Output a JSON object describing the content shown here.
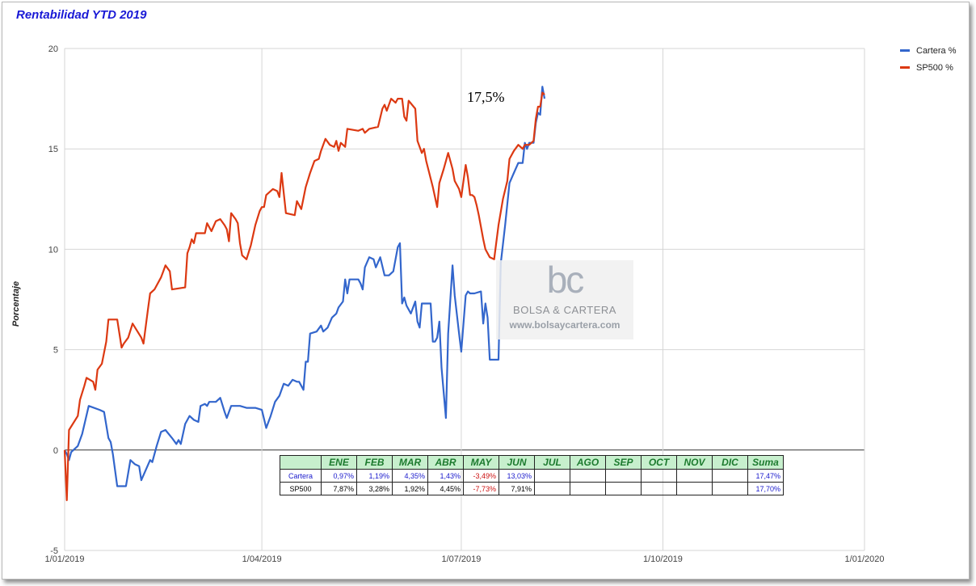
{
  "chart_data": {
    "type": "line",
    "title": "Rentabilidad YTD 2019",
    "ylabel": "Porcentaje",
    "xlabel": "",
    "ylim": [
      -5,
      20
    ],
    "yticks": [
      "-5",
      "0",
      "5",
      "10",
      "15",
      "20"
    ],
    "xlim": [
      "2019-01-01",
      "2020-01-01"
    ],
    "xticks": [
      "1/01/2019",
      "1/04/2019",
      "1/07/2019",
      "1/10/2019",
      "1/01/2020"
    ],
    "grid": true,
    "legend_position": "right",
    "annotation": "17,5%",
    "series": [
      {
        "name": "Cartera %",
        "color": "#3366cc",
        "points": [
          [
            "2019-01-01",
            0
          ],
          [
            "2019-01-02",
            -0.2
          ],
          [
            "2019-01-03",
            -0.5
          ],
          [
            "2019-01-04",
            -0.1
          ],
          [
            "2019-01-07",
            0.2
          ],
          [
            "2019-01-09",
            0.8
          ],
          [
            "2019-01-12",
            2.2
          ],
          [
            "2019-01-17",
            2.0
          ],
          [
            "2019-01-19",
            1.9
          ],
          [
            "2019-01-21",
            0.6
          ],
          [
            "2019-01-22",
            0.4
          ],
          [
            "2019-01-23",
            -0.2
          ],
          [
            "2019-01-25",
            -1.8
          ],
          [
            "2019-01-29",
            -1.8
          ],
          [
            "2019-01-31",
            -0.5
          ],
          [
            "2019-02-02",
            -0.7
          ],
          [
            "2019-02-04",
            -0.8
          ],
          [
            "2019-02-05",
            -1.5
          ],
          [
            "2019-02-09",
            -0.5
          ],
          [
            "2019-02-10",
            -0.6
          ],
          [
            "2019-02-12",
            0.2
          ],
          [
            "2019-02-14",
            0.9
          ],
          [
            "2019-02-16",
            1.0
          ],
          [
            "2019-02-19",
            0.6
          ],
          [
            "2019-02-21",
            0.3
          ],
          [
            "2019-02-22",
            0.5
          ],
          [
            "2019-02-23",
            0.3
          ],
          [
            "2019-02-25",
            1.3
          ],
          [
            "2019-02-27",
            1.7
          ],
          [
            "2019-03-01",
            1.5
          ],
          [
            "2019-03-03",
            1.4
          ],
          [
            "2019-03-04",
            2.2
          ],
          [
            "2019-03-06",
            2.3
          ],
          [
            "2019-03-07",
            2.2
          ],
          [
            "2019-03-08",
            2.4
          ],
          [
            "2019-03-11",
            2.4
          ],
          [
            "2019-03-13",
            2.6
          ],
          [
            "2019-03-15",
            1.9
          ],
          [
            "2019-03-16",
            1.6
          ],
          [
            "2019-03-18",
            2.2
          ],
          [
            "2019-03-22",
            2.2
          ],
          [
            "2019-03-25",
            2.1
          ],
          [
            "2019-03-27",
            2.1
          ],
          [
            "2019-03-29",
            2.1
          ],
          [
            "2019-04-01",
            2.0
          ],
          [
            "2019-04-03",
            1.1
          ],
          [
            "2019-04-05",
            1.7
          ],
          [
            "2019-04-07",
            2.4
          ],
          [
            "2019-04-09",
            2.7
          ],
          [
            "2019-04-11",
            3.3
          ],
          [
            "2019-04-13",
            3.2
          ],
          [
            "2019-04-15",
            3.5
          ],
          [
            "2019-04-17",
            3.4
          ],
          [
            "2019-04-18",
            3.4
          ],
          [
            "2019-04-20",
            3.0
          ],
          [
            "2019-04-21",
            4.4
          ],
          [
            "2019-04-22",
            4.4
          ],
          [
            "2019-04-23",
            5.8
          ],
          [
            "2019-04-26",
            5.9
          ],
          [
            "2019-04-28",
            6.2
          ],
          [
            "2019-04-29",
            5.9
          ],
          [
            "2019-05-01",
            6.1
          ],
          [
            "2019-05-03",
            6.6
          ],
          [
            "2019-05-05",
            6.8
          ],
          [
            "2019-05-06",
            7.1
          ],
          [
            "2019-05-08",
            7.4
          ],
          [
            "2019-05-09",
            8.5
          ],
          [
            "2019-05-10",
            7.8
          ],
          [
            "2019-05-11",
            8.5
          ],
          [
            "2019-05-15",
            8.5
          ],
          [
            "2019-05-16",
            8.3
          ],
          [
            "2019-05-17",
            8.0
          ],
          [
            "2019-05-18",
            9.1
          ],
          [
            "2019-05-20",
            9.6
          ],
          [
            "2019-05-22",
            9.5
          ],
          [
            "2019-05-23",
            9.1
          ],
          [
            "2019-05-25",
            9.6
          ],
          [
            "2019-05-27",
            8.7
          ],
          [
            "2019-05-29",
            8.7
          ],
          [
            "2019-05-31",
            8.9
          ],
          [
            "2019-06-02",
            10.1
          ],
          [
            "2019-06-03",
            10.3
          ],
          [
            "2019-06-04",
            7.3
          ],
          [
            "2019-06-05",
            7.6
          ],
          [
            "2019-06-06",
            7.2
          ],
          [
            "2019-06-08",
            6.8
          ],
          [
            "2019-06-10",
            7.4
          ],
          [
            "2019-06-11",
            6.4
          ],
          [
            "2019-06-12",
            6.1
          ],
          [
            "2019-06-13",
            7.3
          ],
          [
            "2019-06-17",
            7.3
          ],
          [
            "2019-06-18",
            5.4
          ],
          [
            "2019-06-19",
            5.4
          ],
          [
            "2019-06-20",
            5.6
          ],
          [
            "2019-06-21",
            6.4
          ],
          [
            "2019-06-22",
            4.1
          ],
          [
            "2019-06-24",
            1.6
          ],
          [
            "2019-06-25",
            5.8
          ],
          [
            "2019-06-27",
            9.2
          ],
          [
            "2019-06-28",
            7.7
          ],
          [
            "2019-06-30",
            5.8
          ],
          [
            "2019-07-01",
            4.9
          ],
          [
            "2019-07-03",
            7.7
          ],
          [
            "2019-07-04",
            7.9
          ],
          [
            "2019-07-05",
            7.8
          ],
          [
            "2019-07-07",
            7.8
          ],
          [
            "2019-07-10",
            7.9
          ],
          [
            "2019-07-11",
            6.3
          ],
          [
            "2019-07-12",
            7.3
          ],
          [
            "2019-07-13",
            6.6
          ],
          [
            "2019-07-14",
            4.5
          ],
          [
            "2019-07-18",
            4.5
          ],
          [
            "2019-07-19",
            9.3
          ],
          [
            "2019-07-21",
            11.2
          ],
          [
            "2019-07-23",
            13.3
          ],
          [
            "2019-07-25",
            13.8
          ],
          [
            "2019-07-27",
            14.3
          ],
          [
            "2019-07-29",
            14.3
          ],
          [
            "2019-07-30",
            15.3
          ],
          [
            "2019-07-31",
            15.0
          ],
          [
            "2019-08-01",
            15.3
          ],
          [
            "2019-08-03",
            15.3
          ],
          [
            "2019-08-04",
            16.3
          ],
          [
            "2019-08-05",
            16.8
          ],
          [
            "2019-08-06",
            16.7
          ],
          [
            "2019-08-07",
            18.1
          ],
          [
            "2019-08-08",
            17.5
          ]
        ]
      },
      {
        "name": "SP500 %",
        "color": "#dc3912",
        "points": [
          [
            "2019-01-01",
            0
          ],
          [
            "2019-01-02",
            -2.5
          ],
          [
            "2019-01-03",
            1.0
          ],
          [
            "2019-01-07",
            1.7
          ],
          [
            "2019-01-08",
            2.5
          ],
          [
            "2019-01-10",
            3.2
          ],
          [
            "2019-01-11",
            3.6
          ],
          [
            "2019-01-14",
            3.4
          ],
          [
            "2019-01-15",
            3.0
          ],
          [
            "2019-01-16",
            4.0
          ],
          [
            "2019-01-18",
            4.3
          ],
          [
            "2019-01-20",
            5.4
          ],
          [
            "2019-01-21",
            6.5
          ],
          [
            "2019-01-25",
            6.5
          ],
          [
            "2019-01-27",
            5.1
          ],
          [
            "2019-01-28",
            5.3
          ],
          [
            "2019-01-30",
            5.6
          ],
          [
            "2019-02-01",
            6.3
          ],
          [
            "2019-02-05",
            5.6
          ],
          [
            "2019-02-06",
            5.3
          ],
          [
            "2019-02-08",
            7.0
          ],
          [
            "2019-02-09",
            7.8
          ],
          [
            "2019-02-11",
            8.0
          ],
          [
            "2019-02-14",
            8.6
          ],
          [
            "2019-02-15",
            8.9
          ],
          [
            "2019-02-16",
            9.2
          ],
          [
            "2019-02-18",
            8.9
          ],
          [
            "2019-02-19",
            8.0
          ],
          [
            "2019-02-25",
            8.1
          ],
          [
            "2019-02-26",
            9.8
          ],
          [
            "2019-02-27",
            10.1
          ],
          [
            "2019-02-28",
            10.5
          ],
          [
            "2019-03-01",
            10.3
          ],
          [
            "2019-03-02",
            10.8
          ],
          [
            "2019-03-06",
            10.8
          ],
          [
            "2019-03-07",
            11.3
          ],
          [
            "2019-03-09",
            10.9
          ],
          [
            "2019-03-11",
            11.4
          ],
          [
            "2019-03-13",
            11.5
          ],
          [
            "2019-03-15",
            11.2
          ],
          [
            "2019-03-16",
            11.0
          ],
          [
            "2019-03-17",
            10.4
          ],
          [
            "2019-03-18",
            11.8
          ],
          [
            "2019-03-20",
            11.5
          ],
          [
            "2019-03-21",
            11.3
          ],
          [
            "2019-03-22",
            10.3
          ],
          [
            "2019-03-23",
            9.7
          ],
          [
            "2019-03-25",
            9.5
          ],
          [
            "2019-03-27",
            10.2
          ],
          [
            "2019-03-29",
            11.2
          ],
          [
            "2019-03-31",
            11.9
          ],
          [
            "2019-04-01",
            12.1
          ],
          [
            "2019-04-02",
            12.1
          ],
          [
            "2019-04-03",
            12.7
          ],
          [
            "2019-04-06",
            13.0
          ],
          [
            "2019-04-08",
            12.9
          ],
          [
            "2019-04-09",
            12.6
          ],
          [
            "2019-04-10",
            13.8
          ],
          [
            "2019-04-12",
            11.8
          ],
          [
            "2019-04-16",
            11.7
          ],
          [
            "2019-04-17",
            12.4
          ],
          [
            "2019-04-19",
            12.0
          ],
          [
            "2019-04-21",
            13.1
          ],
          [
            "2019-04-23",
            13.8
          ],
          [
            "2019-04-25",
            14.4
          ],
          [
            "2019-04-27",
            14.5
          ],
          [
            "2019-04-28",
            14.9
          ],
          [
            "2019-04-30",
            15.5
          ],
          [
            "2019-05-02",
            15.2
          ],
          [
            "2019-05-04",
            15.1
          ],
          [
            "2019-05-05",
            15.4
          ],
          [
            "2019-05-06",
            14.9
          ],
          [
            "2019-05-07",
            15.3
          ],
          [
            "2019-05-09",
            15.1
          ],
          [
            "2019-05-10",
            16.0
          ],
          [
            "2019-05-15",
            15.9
          ],
          [
            "2019-05-17",
            16.0
          ],
          [
            "2019-05-18",
            15.8
          ],
          [
            "2019-05-20",
            16.0
          ],
          [
            "2019-05-24",
            16.1
          ],
          [
            "2019-05-26",
            17.0
          ],
          [
            "2019-05-27",
            17.2
          ],
          [
            "2019-05-28",
            16.9
          ],
          [
            "2019-05-30",
            17.5
          ],
          [
            "2019-06-01",
            17.3
          ],
          [
            "2019-06-02",
            17.5
          ],
          [
            "2019-06-04",
            17.5
          ],
          [
            "2019-06-05",
            16.6
          ],
          [
            "2019-06-06",
            16.4
          ],
          [
            "2019-06-07",
            17.4
          ],
          [
            "2019-06-10",
            17.0
          ],
          [
            "2019-06-11",
            15.4
          ],
          [
            "2019-06-12",
            15.1
          ],
          [
            "2019-06-13",
            14.8
          ],
          [
            "2019-06-14",
            15.0
          ],
          [
            "2019-06-15",
            14.4
          ],
          [
            "2019-06-18",
            13.1
          ],
          [
            "2019-06-20",
            12.1
          ],
          [
            "2019-06-21",
            13.3
          ],
          [
            "2019-06-23",
            14.0
          ],
          [
            "2019-06-25",
            14.8
          ],
          [
            "2019-06-27",
            14.0
          ],
          [
            "2019-06-28",
            13.4
          ],
          [
            "2019-06-30",
            13.0
          ],
          [
            "2019-07-01",
            12.6
          ],
          [
            "2019-07-03",
            14.2
          ],
          [
            "2019-07-04",
            13.6
          ],
          [
            "2019-07-05",
            12.7
          ],
          [
            "2019-07-06",
            12.7
          ],
          [
            "2019-07-07",
            12.6
          ],
          [
            "2019-07-08",
            12.2
          ],
          [
            "2019-07-09",
            11.7
          ],
          [
            "2019-07-11",
            10.5
          ],
          [
            "2019-07-12",
            10.0
          ],
          [
            "2019-07-14",
            9.6
          ],
          [
            "2019-07-16",
            9.5
          ],
          [
            "2019-07-18",
            11.2
          ],
          [
            "2019-07-20",
            12.5
          ],
          [
            "2019-07-22",
            13.4
          ],
          [
            "2019-07-23",
            14.5
          ],
          [
            "2019-07-25",
            14.9
          ],
          [
            "2019-07-27",
            15.2
          ],
          [
            "2019-07-29",
            15.0
          ],
          [
            "2019-07-30",
            15.2
          ],
          [
            "2019-08-01",
            15.2
          ],
          [
            "2019-08-03",
            15.4
          ],
          [
            "2019-08-04",
            16.5
          ],
          [
            "2019-08-05",
            17.1
          ],
          [
            "2019-08-06",
            17.1
          ],
          [
            "2019-08-07",
            17.8
          ],
          [
            "2019-08-08",
            17.7
          ]
        ]
      }
    ]
  },
  "table": {
    "months": [
      "ENE",
      "FEB",
      "MAR",
      "ABR",
      "MAY",
      "JUN",
      "JUL",
      "AGO",
      "SEP",
      "OCT",
      "NOV",
      "DIC",
      "Suma"
    ],
    "rows": [
      {
        "label": "Cartera",
        "values": [
          "0,97%",
          "1,19%",
          "4,35%",
          "1,43%",
          "-3,49%",
          "13,03%",
          "",
          "",
          "",
          "",
          "",
          "",
          "17,47%"
        ]
      },
      {
        "label": "SP500",
        "values": [
          "7,87%",
          "3,28%",
          "1,92%",
          "4,45%",
          "-7,73%",
          "7,91%",
          "",
          "",
          "",
          "",
          "",
          "",
          "17,70%"
        ]
      }
    ]
  },
  "watermark": {
    "logo": "bc",
    "name": "BOLSA & CARTERA",
    "url": "www.bolsaycartera.com"
  }
}
